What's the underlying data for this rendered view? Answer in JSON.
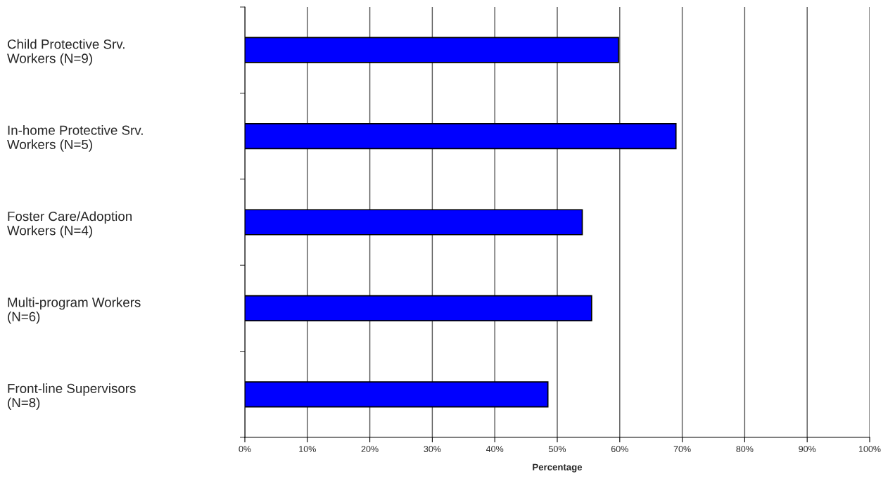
{
  "chart_data": {
    "type": "bar",
    "orientation": "horizontal",
    "xlabel": "Percentage",
    "categories": [
      "Child Protective Srv.\nWorkers (N=9)",
      "In-home Protective Srv.\nWorkers (N=5)",
      "Foster Care/Adoption\nWorkers (N=4)",
      "Multi-program Workers\n(N=6)",
      "Front-line Supervisors\n(N=8)"
    ],
    "values": [
      59.8,
      69,
      54,
      55.5,
      48.5
    ],
    "color": "#0000ff",
    "xlim": [
      0,
      100
    ],
    "xticks": [
      {
        "value": 0,
        "label": "0%"
      },
      {
        "value": 10,
        "label": "10%"
      },
      {
        "value": 20,
        "label": "20%"
      },
      {
        "value": 30,
        "label": "30%"
      },
      {
        "value": 40,
        "label": "40%"
      },
      {
        "value": 50,
        "label": "50%"
      },
      {
        "value": 60,
        "label": "60%"
      },
      {
        "value": 70,
        "label": "70%"
      },
      {
        "value": 80,
        "label": "80%"
      },
      {
        "value": 90,
        "label": "90%"
      },
      {
        "value": 100,
        "label": "100%"
      }
    ],
    "grid": "x",
    "legend": false
  }
}
